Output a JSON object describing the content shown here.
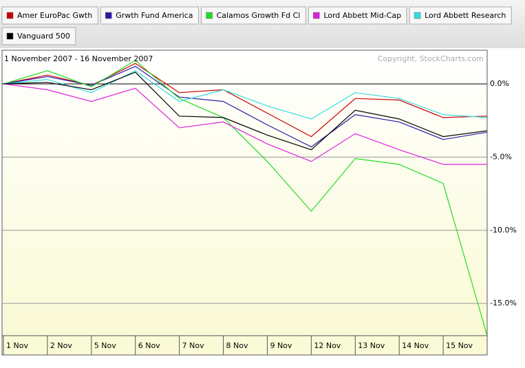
{
  "chart_data": {
    "type": "line",
    "subtitle": "1 November 2007 - 16 November 2007",
    "annotation": "Copyright, StockCharts.com",
    "categories": [
      "1 Nov",
      "2 Nov",
      "5 Nov",
      "6 Nov",
      "7 Nov",
      "8 Nov",
      "9 Nov",
      "12 Nov",
      "13 Nov",
      "14 Nov",
      "15 Nov",
      null
    ],
    "series": [
      {
        "name": "Amer EuroPac Gwth",
        "color": "#cc0000",
        "values": [
          0,
          0.6,
          -0.1,
          1.4,
          -0.6,
          -0.4,
          -2.0,
          -3.6,
          -1.0,
          -1.1,
          -2.3,
          -2.2
        ]
      },
      {
        "name": "Grwth Fund America",
        "color": "#2a1aa8",
        "values": [
          0,
          0.5,
          -0.1,
          1.2,
          -0.9,
          -1.2,
          -2.8,
          -4.3,
          -2.1,
          -2.6,
          -3.8,
          -3.3
        ]
      },
      {
        "name": "Calamos Growth Fd Cl",
        "color": "#22dd22",
        "values": [
          0,
          0.9,
          -0.2,
          1.6,
          -1.0,
          -2.3,
          -5.3,
          -8.7,
          -5.1,
          -5.5,
          -6.8,
          -17.2
        ]
      },
      {
        "name": "Lord Abbett Mid-Cap",
        "color": "#dd22dd",
        "values": [
          0,
          -0.4,
          -1.2,
          -0.3,
          -3.0,
          -2.6,
          -4.1,
          -5.3,
          -3.4,
          -4.5,
          -5.5,
          -5.5
        ]
      },
      {
        "name": "Lord Abbett Research",
        "color": "#33dddd",
        "values": [
          0,
          0.3,
          -0.6,
          0.9,
          -1.2,
          -0.4,
          -1.5,
          -2.4,
          -0.6,
          -1.0,
          -2.1,
          -2.3
        ]
      },
      {
        "name": "Vanguard 500",
        "color": "#000000",
        "values": [
          0,
          0.1,
          -0.4,
          0.8,
          -2.2,
          -2.3,
          -3.5,
          -4.5,
          -1.8,
          -2.4,
          -3.6,
          -3.2
        ]
      }
    ],
    "ylim": [
      -17.2,
      2.3
    ],
    "yticks": [
      {
        "value": 0,
        "label": "0.0%"
      },
      {
        "value": -5,
        "label": "-5.0%"
      },
      {
        "value": -10,
        "label": "-10.0%"
      },
      {
        "value": -15,
        "label": "-15.0%"
      }
    ],
    "grid": true
  }
}
